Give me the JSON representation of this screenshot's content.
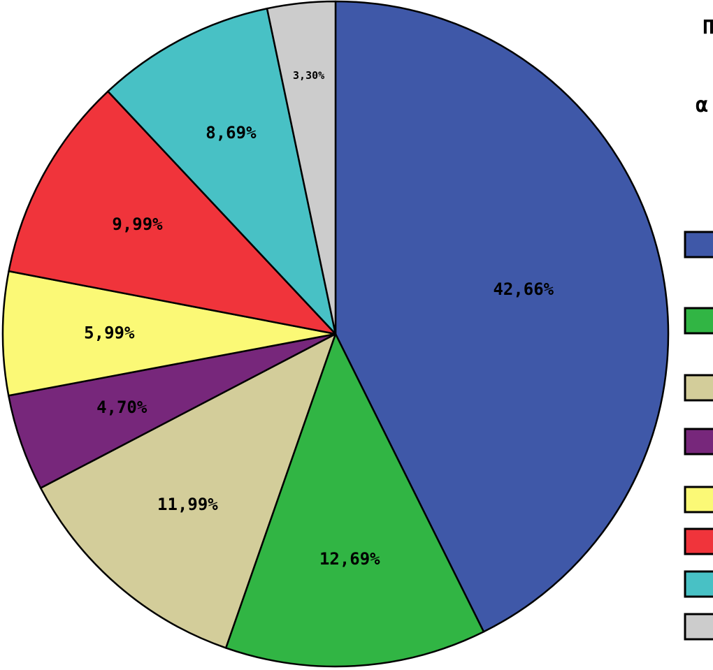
{
  "chart_data": {
    "type": "pie",
    "title": "Π",
    "subtitle": "α",
    "start_angle_deg": 0,
    "direction": "clockwise",
    "slices": [
      {
        "value": 42.66,
        "label": "42,66%",
        "color": "#3f58a8"
      },
      {
        "value": 12.69,
        "label": "12,69%",
        "color": "#31b544"
      },
      {
        "value": 11.99,
        "label": "11,99%",
        "color": "#d3cd9a"
      },
      {
        "value": 4.7,
        "label": "4,70%",
        "color": "#77277b"
      },
      {
        "value": 5.99,
        "label": "5,99%",
        "color": "#fbf976"
      },
      {
        "value": 9.99,
        "label": "9,99%",
        "color": "#f0343b"
      },
      {
        "value": 8.69,
        "label": "8,69%",
        "color": "#48c1c5"
      },
      {
        "value": 3.3,
        "label": "3,30%",
        "color": "#cccccc"
      }
    ],
    "legend": {
      "placement": "right"
    }
  }
}
